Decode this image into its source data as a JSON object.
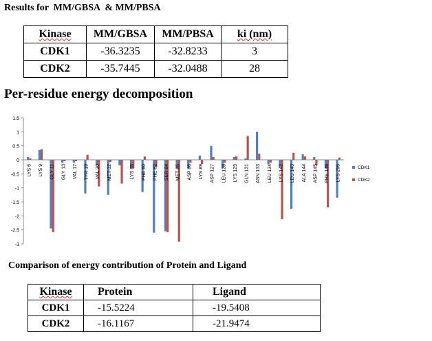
{
  "results_heading": "Results for  MM/GBSA  & MM/PBSA",
  "results_table": {
    "headers": [
      "Kinase",
      "MM/GBSA",
      "MM/PBSA",
      "ki (nm)"
    ],
    "rows": [
      [
        "CDK1",
        "-36.3235",
        "-32.8233",
        "3"
      ],
      [
        "CDK2",
        "-35.7445",
        "-32.0488",
        "28"
      ]
    ]
  },
  "chart_heading": "Per-residue energy decomposition",
  "chart_data": {
    "type": "bar",
    "title": "Per-residue energy decomposition",
    "ylim": [
      -3,
      1.5
    ],
    "yticks": [
      "1.5",
      "1",
      "0.5",
      "0",
      "-0.5",
      "-1",
      "-1.5",
      "-2",
      "-2.5",
      "-3"
    ],
    "categories": [
      "LYS 6",
      "LYS 9",
      "GLY 11",
      "GLY 13",
      "VAL 17",
      "TYR 19",
      "VAL 30",
      "MET 32",
      "LYS 33",
      "LYS 65",
      "PHE 80",
      "PHE 82",
      "SER 84",
      "MET 85",
      "ASP 86",
      "LYS 89",
      "ASP 127",
      "LEU 128",
      "LYS 129",
      "GLN 131",
      "ASN 133",
      "LEU 134",
      "LYS 142",
      "LEU 143",
      "ALA 144",
      "ASP 145",
      "PHE 146",
      "LYS 295"
    ],
    "series": [
      {
        "name": "CDK1",
        "color": "#4f81bd",
        "values": [
          0.1,
          0.35,
          -2.45,
          -0.1,
          -0.1,
          -1.2,
          -0.2,
          -1.25,
          -0.2,
          -0.3,
          -1.15,
          -2.6,
          -2.55,
          -0.3,
          -0.3,
          0.15,
          0.5,
          -0.3,
          0.1,
          0.05,
          1.0,
          -0.15,
          -0.25,
          -1.75,
          0.2,
          0.1,
          -0.3,
          -1.35
        ]
      },
      {
        "name": "CDK2",
        "color": "#c0504d",
        "values": [
          0.05,
          0.38,
          -2.58,
          -0.05,
          -0.05,
          0.18,
          -0.95,
          -0.08,
          -0.85,
          -0.3,
          0.12,
          -0.25,
          -2.58,
          -2.92,
          -0.1,
          -0.15,
          0.1,
          -0.1,
          0.12,
          0.85,
          0.22,
          -0.1,
          -2.12,
          0.25,
          0.12,
          -0.2,
          -1.7,
          0.08
        ]
      }
    ]
  },
  "comparison_heading": "Comparison of energy contribution of Protein and Ligand",
  "comparison_table": {
    "headers": [
      "Kinase",
      "Protein",
      "Ligand"
    ],
    "rows": [
      [
        "CDK1",
        "-15.5224",
        "-19.5408"
      ],
      [
        "CDK2",
        "-16.1167",
        "-21.9474"
      ]
    ]
  }
}
